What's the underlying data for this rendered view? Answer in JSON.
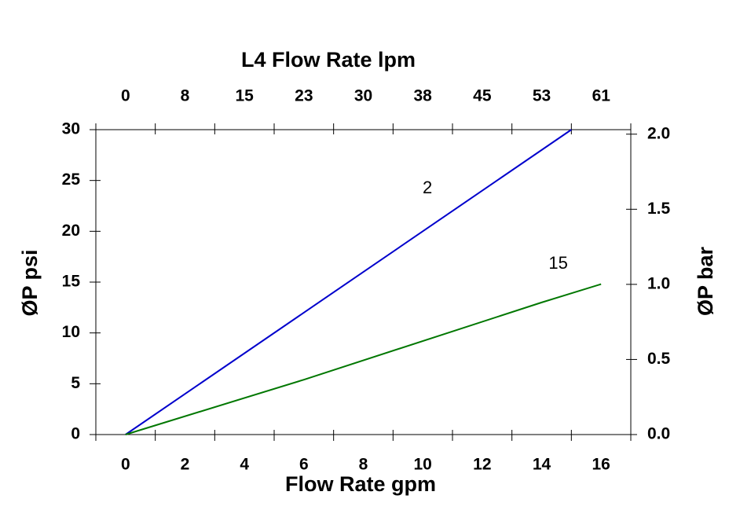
{
  "chart_data": {
    "type": "line",
    "x_label": "Flow Rate gpm",
    "x2_label": "L4  Flow Rate lpm",
    "y_label": "ØP psi",
    "y2_label": "ØP bar",
    "xlim": [
      -1,
      17
    ],
    "xticks": [
      0,
      2,
      4,
      6,
      8,
      10,
      12,
      14,
      16
    ],
    "xminorticks": [
      -1,
      1,
      3,
      5,
      7,
      9,
      11,
      13,
      15,
      17
    ],
    "x2lim": [
      -3.785,
      64.345
    ],
    "x2ticks": [
      0,
      {
        "value": 7.57,
        "label": "8"
      },
      {
        "value": 15.14,
        "label": "15"
      },
      {
        "value": 22.71,
        "label": "23"
      },
      {
        "value": 30.28,
        "label": "30"
      },
      {
        "value": 37.85,
        "label": "38"
      },
      {
        "value": 45.42,
        "label": "45"
      },
      {
        "value": 52.99,
        "label": "53"
      },
      {
        "value": 60.57,
        "label": "61"
      }
    ],
    "ylim": [
      0,
      30
    ],
    "yticks": [
      0,
      5,
      10,
      15,
      20,
      25,
      30
    ],
    "y2lim": [
      0,
      2.03
    ],
    "y2ticks": [
      {
        "value": 0,
        "label": "0.0"
      },
      0.5,
      {
        "value": 1,
        "label": "1.0"
      },
      1.5,
      {
        "value": 2,
        "label": "2.0"
      }
    ],
    "series": [
      {
        "name": "2",
        "color": "#0000cc",
        "x": [
          0,
          15
        ],
        "values": [
          0,
          30
        ]
      },
      {
        "name": "15",
        "color": "#007700",
        "x": [
          0,
          6,
          14,
          16
        ],
        "values": [
          0,
          5.4,
          13,
          14.8
        ]
      }
    ]
  }
}
